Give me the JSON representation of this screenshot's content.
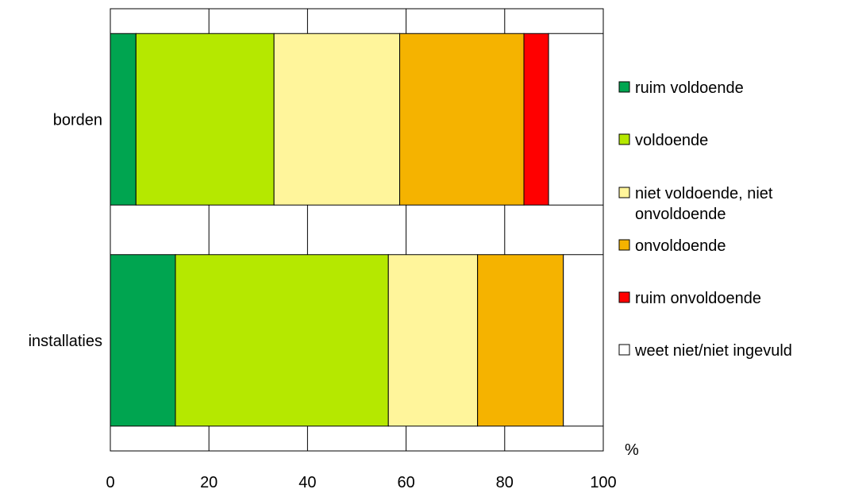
{
  "chart_data": {
    "type": "bar",
    "orientation": "horizontal",
    "stacked": true,
    "categories": [
      "borden",
      "installaties"
    ],
    "series": [
      {
        "name": "ruim voldoende",
        "color": "#00A550",
        "values": [
          5.2,
          13.2
        ]
      },
      {
        "name": "voldoende",
        "color": "#B5E800",
        "values": [
          28.0,
          43.2
        ]
      },
      {
        "name": "niet voldoende, niet onvoldoende",
        "color": "#FFF59B",
        "values": [
          25.5,
          18.1
        ]
      },
      {
        "name": "onvoldoende",
        "color": "#F5B300",
        "values": [
          25.2,
          17.4
        ]
      },
      {
        "name": "ruim onvoldoende",
        "color": "#FF0000",
        "values": [
          5.0,
          0
        ]
      },
      {
        "name": "weet niet/niet ingevuld",
        "color": "#FFFFFF",
        "values": [
          11.1,
          8.1
        ]
      }
    ],
    "xlabel": "%",
    "xlim": [
      0,
      100
    ],
    "xticks": [
      "0",
      "20",
      "40",
      "60",
      "80",
      "100"
    ],
    "grid": true,
    "legend": "right"
  }
}
